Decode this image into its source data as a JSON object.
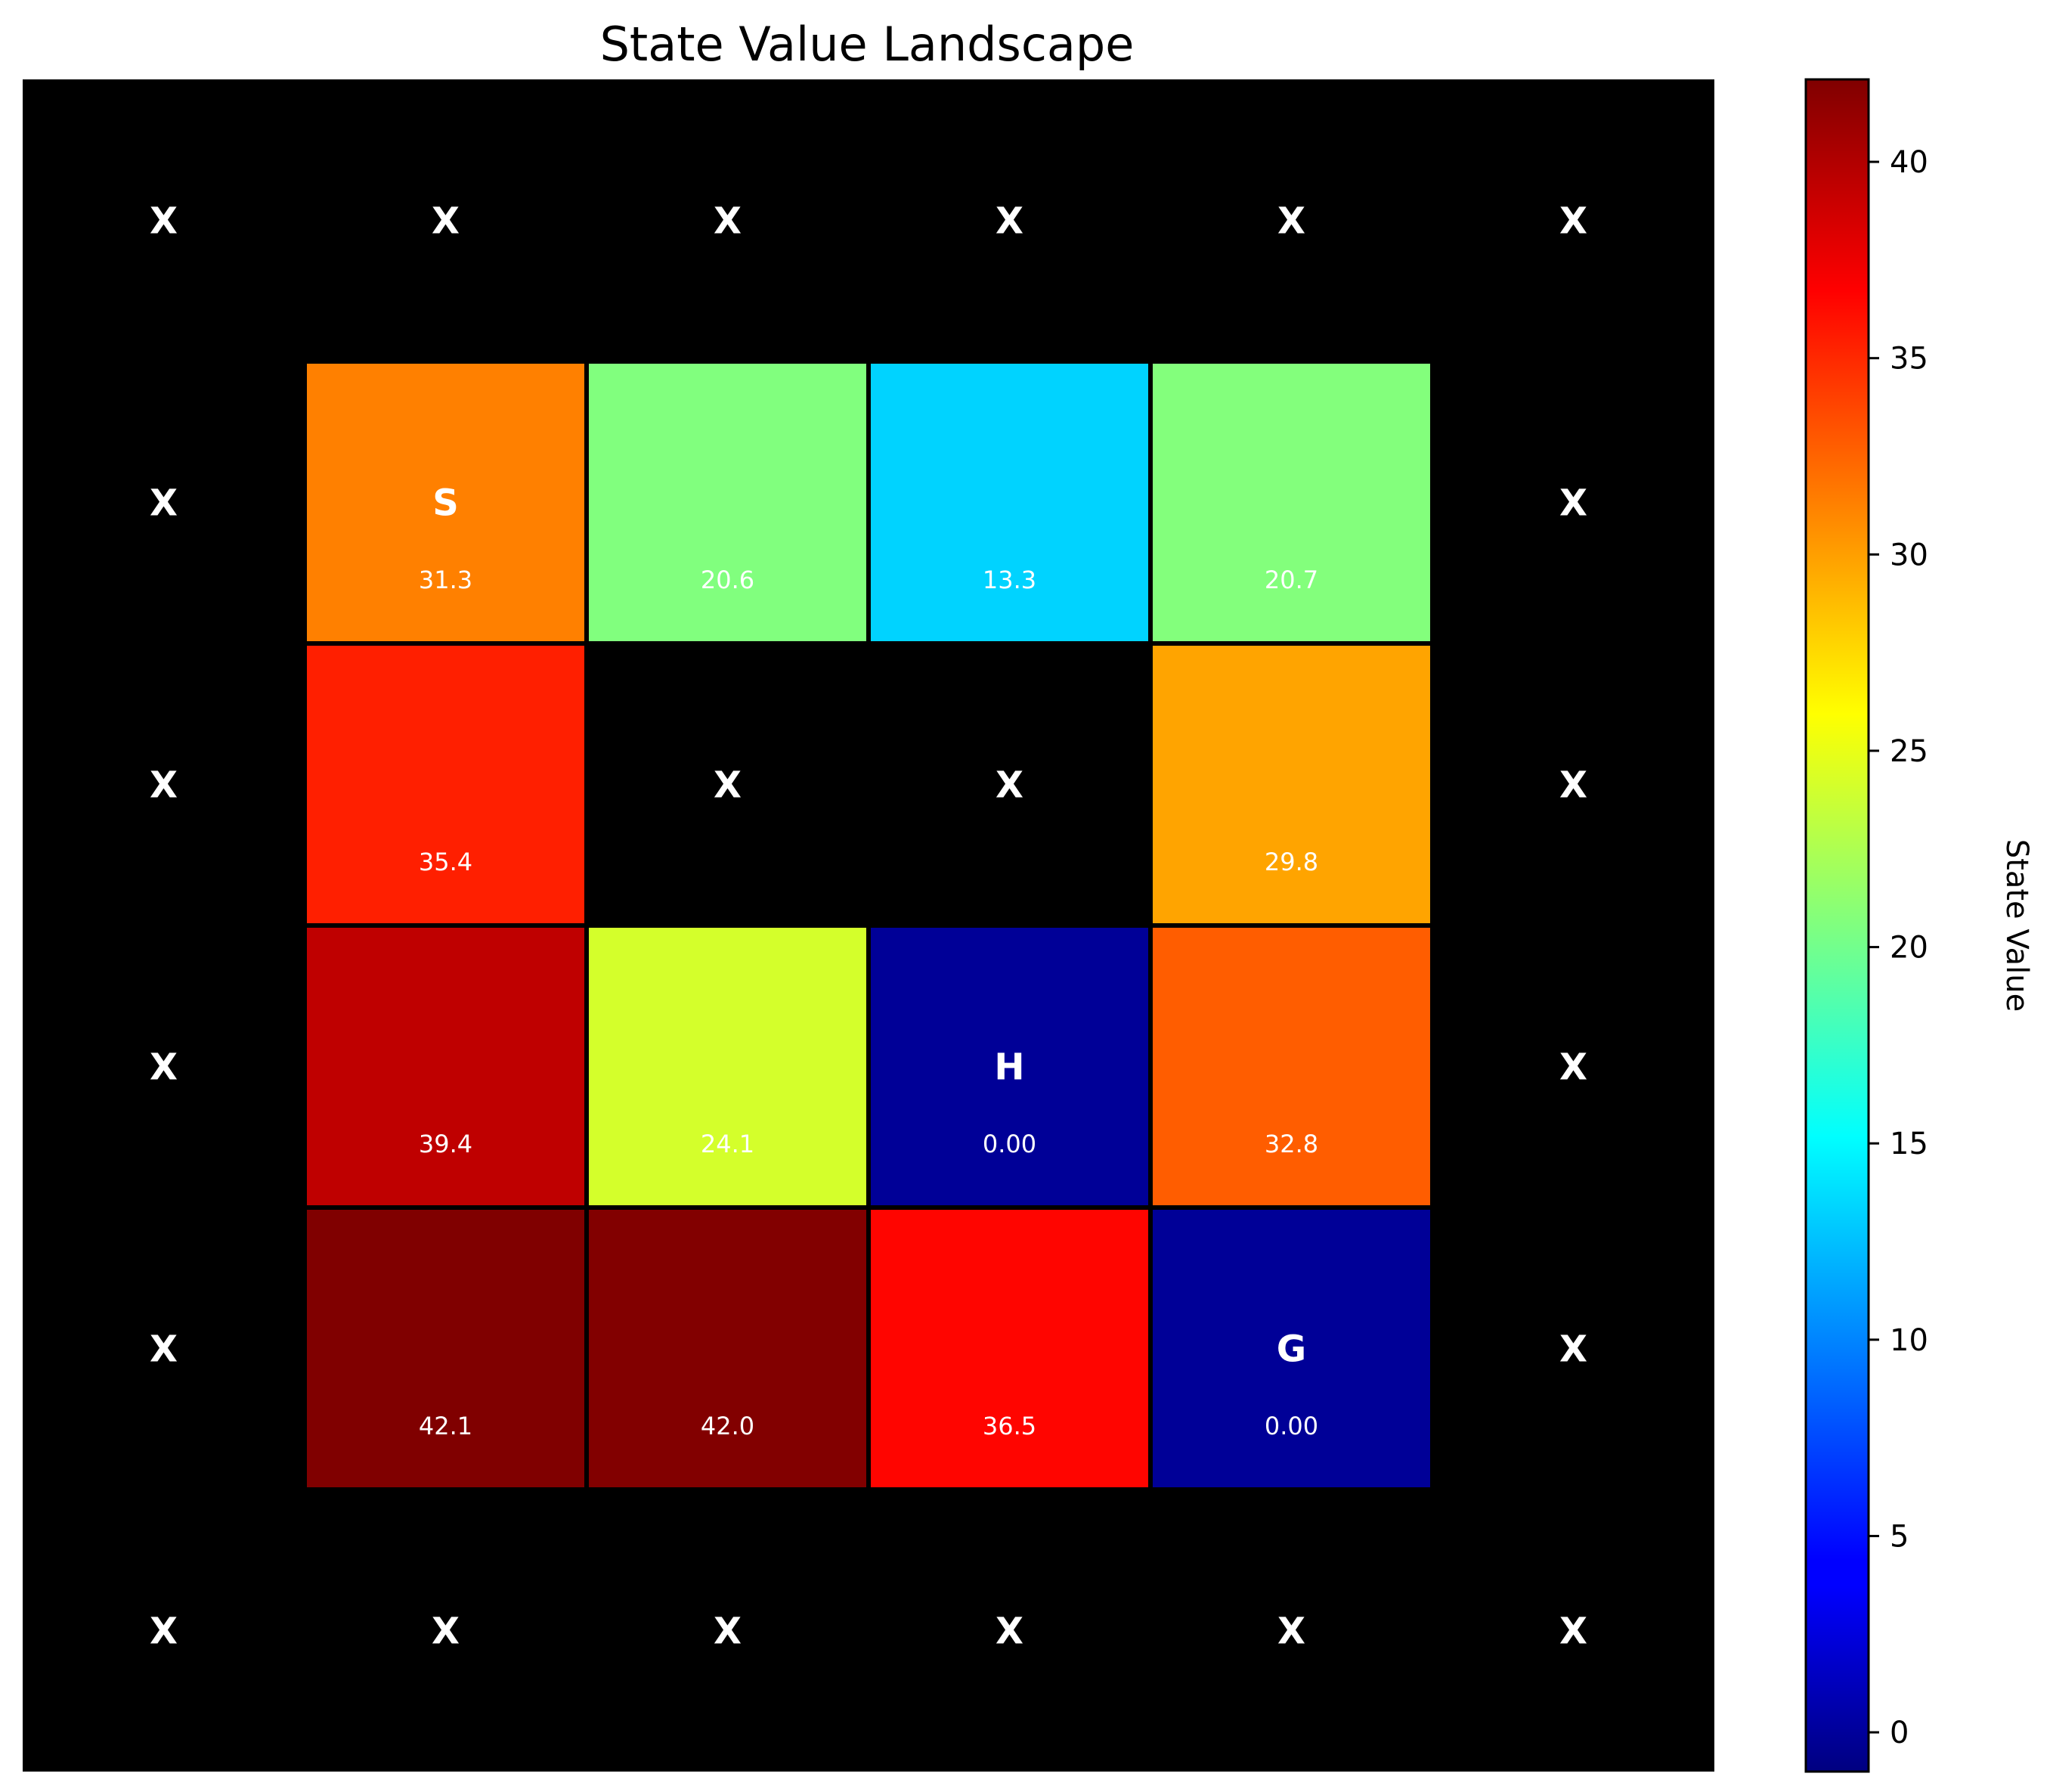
{
  "chart_data": {
    "type": "heatmap",
    "title": "State Value Landscape",
    "colorbar_label": "State Value",
    "colormap": "jet",
    "vmin": -1.0,
    "vmax": 42.1,
    "colorbar_ticks": [
      "0",
      "5",
      "10",
      "15",
      "20",
      "25",
      "30",
      "35",
      "40"
    ],
    "grid_rows": 6,
    "grid_cols": 6,
    "wall_symbol": "X",
    "wall_color": "#000000",
    "cells": [
      {
        "row": 1,
        "col": 1,
        "value": 31.3,
        "label": "31.3",
        "marker": "S"
      },
      {
        "row": 1,
        "col": 2,
        "value": 20.6,
        "label": "20.6",
        "marker": ""
      },
      {
        "row": 1,
        "col": 3,
        "value": 13.3,
        "label": "13.3",
        "marker": ""
      },
      {
        "row": 1,
        "col": 4,
        "value": 20.7,
        "label": "20.7",
        "marker": ""
      },
      {
        "row": 2,
        "col": 1,
        "value": 35.4,
        "label": "35.4",
        "marker": ""
      },
      {
        "row": 2,
        "col": 4,
        "value": 29.8,
        "label": "29.8",
        "marker": ""
      },
      {
        "row": 3,
        "col": 1,
        "value": 39.4,
        "label": "39.4",
        "marker": ""
      },
      {
        "row": 3,
        "col": 2,
        "value": 24.1,
        "label": "24.1",
        "marker": ""
      },
      {
        "row": 3,
        "col": 3,
        "value": 0.0,
        "label": "0.00",
        "marker": "H"
      },
      {
        "row": 3,
        "col": 4,
        "value": 32.8,
        "label": "32.8",
        "marker": ""
      },
      {
        "row": 4,
        "col": 1,
        "value": 42.1,
        "label": "42.1",
        "marker": ""
      },
      {
        "row": 4,
        "col": 2,
        "value": 42.0,
        "label": "42.0",
        "marker": ""
      },
      {
        "row": 4,
        "col": 3,
        "value": 36.5,
        "label": "36.5",
        "marker": ""
      },
      {
        "row": 4,
        "col": 4,
        "value": 0.0,
        "label": "0.00",
        "marker": "G"
      }
    ]
  }
}
